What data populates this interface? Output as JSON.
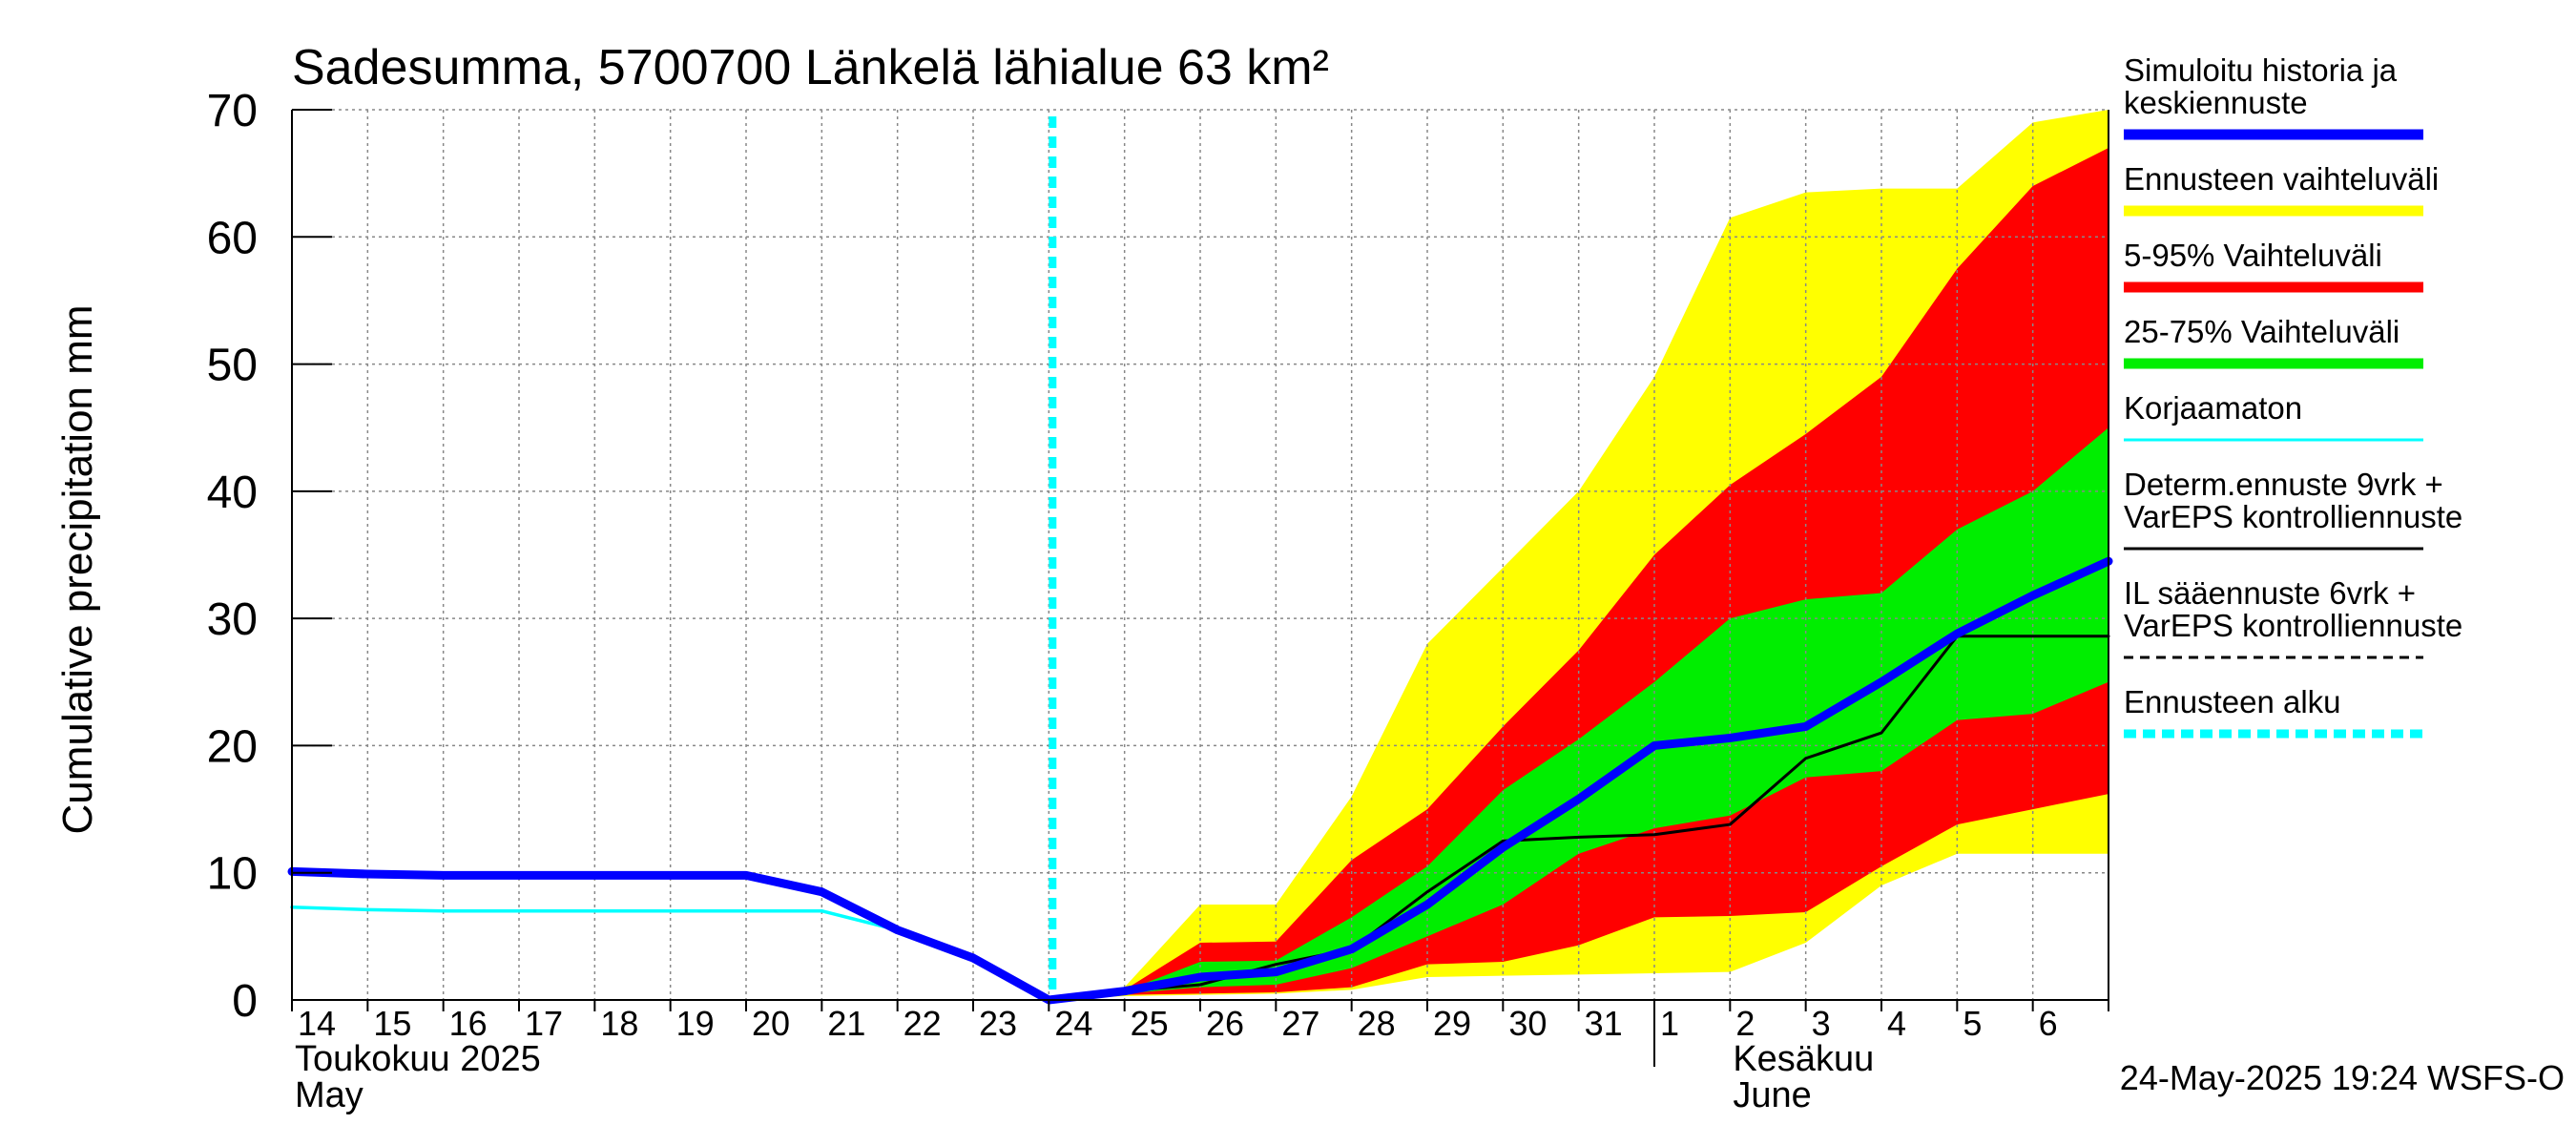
{
  "chart_data": {
    "type": "area",
    "title": "Sadesumma, 5700700 Länkelä lähialue 63 km²",
    "ylabel": "Cumulative precipitation   mm",
    "ylim": [
      0,
      70
    ],
    "yticks": [
      0,
      10,
      20,
      30,
      40,
      50,
      60,
      70
    ],
    "grid": true,
    "legend_position": "right",
    "x_tick_labels": [
      "14",
      "15",
      "16",
      "17",
      "18",
      "19",
      "20",
      "21",
      "22",
      "23",
      "24",
      "25",
      "26",
      "27",
      "28",
      "29",
      "30",
      "31",
      "1",
      "2",
      "3",
      "4",
      "5",
      "6"
    ],
    "month_labels": [
      {
        "day": 0,
        "lines": [
          "Toukokuu  2025",
          "May"
        ]
      },
      {
        "day": 19,
        "lines": [
          "Kesäkuu",
          "June"
        ]
      }
    ],
    "month_divider_day": 18,
    "forecast_start_day": 10,
    "timestamp": "24-May-2025 19:24 WSFS-O",
    "colors": {
      "yellow": "#ffff00",
      "red": "#ff0000",
      "green": "#00ee00",
      "blue": "#0000ff",
      "cyan": "#00ffff",
      "black": "#000000",
      "grid": "#888888"
    },
    "bands": [
      {
        "name": "Ennusteen vaihteluväli",
        "color": "#ffff00",
        "upper": [
          [
            10,
            0
          ],
          [
            11,
            1
          ],
          [
            12,
            7.5
          ],
          [
            13,
            7.5
          ],
          [
            14,
            16
          ],
          [
            15,
            28
          ],
          [
            16,
            34
          ],
          [
            17,
            40
          ],
          [
            18,
            49
          ],
          [
            19,
            61.5
          ],
          [
            20,
            63.5
          ],
          [
            21,
            63.8
          ],
          [
            22,
            63.8
          ],
          [
            23,
            69
          ],
          [
            24,
            70
          ]
        ],
        "lower": [
          [
            10,
            0
          ],
          [
            11,
            0.3
          ],
          [
            12,
            0.4
          ],
          [
            13,
            0.5
          ],
          [
            14,
            0.8
          ],
          [
            15,
            1.8
          ],
          [
            16,
            1.9
          ],
          [
            17,
            2.0
          ],
          [
            18,
            2.1
          ],
          [
            19,
            2.2
          ],
          [
            20,
            4.5
          ],
          [
            21,
            9
          ],
          [
            22,
            11.5
          ],
          [
            23,
            11.5
          ],
          [
            24,
            11.5
          ]
        ]
      },
      {
        "name": "5-95% Vaihteluväli",
        "color": "#ff0000",
        "upper": [
          [
            10,
            0
          ],
          [
            11,
            0.8
          ],
          [
            12,
            4.5
          ],
          [
            13,
            4.6
          ],
          [
            14,
            11
          ],
          [
            15,
            15
          ],
          [
            16,
            21.5
          ],
          [
            17,
            27.5
          ],
          [
            18,
            35
          ],
          [
            19,
            40.5
          ],
          [
            20,
            44.5
          ],
          [
            21,
            49
          ],
          [
            22,
            57.5
          ],
          [
            23,
            64
          ],
          [
            24,
            67
          ]
        ],
        "lower": [
          [
            10,
            0
          ],
          [
            11,
            0.4
          ],
          [
            12,
            0.5
          ],
          [
            13,
            0.6
          ],
          [
            14,
            1.0
          ],
          [
            15,
            2.8
          ],
          [
            16,
            3.0
          ],
          [
            17,
            4.3
          ],
          [
            18,
            6.5
          ],
          [
            19,
            6.6
          ],
          [
            20,
            6.9
          ],
          [
            21,
            10.5
          ],
          [
            22,
            13.8
          ],
          [
            23,
            15
          ],
          [
            24,
            16.2
          ]
        ]
      },
      {
        "name": "25-75% Vaihteluväli",
        "color": "#00ee00",
        "upper": [
          [
            10,
            0
          ],
          [
            11,
            0.7
          ],
          [
            12,
            3.0
          ],
          [
            13,
            3.1
          ],
          [
            14,
            6.5
          ],
          [
            15,
            10.5
          ],
          [
            16,
            16.5
          ],
          [
            17,
            20.5
          ],
          [
            18,
            25
          ],
          [
            19,
            30
          ],
          [
            20,
            31.5
          ],
          [
            21,
            32
          ],
          [
            22,
            37
          ],
          [
            23,
            40
          ],
          [
            24,
            45
          ]
        ],
        "lower": [
          [
            10,
            0
          ],
          [
            11,
            0.5
          ],
          [
            12,
            1.0
          ],
          [
            13,
            1.2
          ],
          [
            14,
            2.5
          ],
          [
            15,
            5.0
          ],
          [
            16,
            7.5
          ],
          [
            17,
            11.5
          ],
          [
            18,
            13.5
          ],
          [
            19,
            14.5
          ],
          [
            20,
            17.5
          ],
          [
            21,
            18
          ],
          [
            22,
            22
          ],
          [
            23,
            22.5
          ],
          [
            24,
            25
          ]
        ]
      }
    ],
    "series": [
      {
        "name": "Korjaamaton",
        "color": "#00ffff",
        "style": "solid",
        "points": [
          [
            0,
            7.3
          ],
          [
            1,
            7.1
          ],
          [
            2,
            7.0
          ],
          [
            3,
            7.0
          ],
          [
            4,
            7.0
          ],
          [
            5,
            7.0
          ],
          [
            6,
            7.0
          ],
          [
            7,
            7.0
          ],
          [
            8,
            5.5
          ],
          [
            9,
            3.3
          ],
          [
            10,
            0
          ]
        ]
      },
      {
        "name": "Determ.ennuste 9vrk + VarEPS kontrolliennuste",
        "color": "#000000",
        "style": "solid",
        "points": [
          [
            10,
            0
          ],
          [
            11,
            0.7
          ],
          [
            12,
            1.2
          ],
          [
            13,
            2.8
          ],
          [
            14,
            4.0
          ],
          [
            15,
            8.5
          ],
          [
            16,
            12.5
          ],
          [
            17,
            12.8
          ],
          [
            18,
            13.0
          ],
          [
            19,
            13.8
          ],
          [
            20,
            19
          ],
          [
            21,
            21
          ],
          [
            22,
            28.6
          ],
          [
            23,
            28.6
          ],
          [
            24,
            28.6
          ]
        ]
      },
      {
        "name": "Simuloitu historia ja keskiennuste",
        "color": "#0000ff",
        "style": "solid",
        "points": [
          [
            0,
            10.1
          ],
          [
            1,
            9.9
          ],
          [
            2,
            9.8
          ],
          [
            3,
            9.8
          ],
          [
            4,
            9.8
          ],
          [
            5,
            9.8
          ],
          [
            6,
            9.8
          ],
          [
            7,
            8.5
          ],
          [
            8,
            5.5
          ],
          [
            9,
            3.3
          ],
          [
            10,
            0
          ],
          [
            11,
            0.7
          ],
          [
            12,
            1.8
          ],
          [
            13,
            2.2
          ],
          [
            14,
            4.0
          ],
          [
            15,
            7.5
          ],
          [
            16,
            12.0
          ],
          [
            17,
            15.8
          ],
          [
            18,
            20.0
          ],
          [
            19,
            20.6
          ],
          [
            20,
            21.5
          ],
          [
            21,
            25
          ],
          [
            22,
            28.8
          ],
          [
            23,
            31.8
          ],
          [
            24,
            34.5
          ]
        ]
      }
    ],
    "legend": [
      {
        "lines": [
          "Simuloitu historia ja",
          "keskiennuste"
        ],
        "color": "#0000ff",
        "style": "thick"
      },
      {
        "lines": [
          "Ennusteen vaihteluväli"
        ],
        "color": "#ffff00",
        "style": "thick"
      },
      {
        "lines": [
          "5-95% Vaihteluväli"
        ],
        "color": "#ff0000",
        "style": "thick"
      },
      {
        "lines": [
          "25-75% Vaihteluväli"
        ],
        "color": "#00ee00",
        "style": "thick"
      },
      {
        "lines": [
          "Korjaamaton"
        ],
        "color": "#00ffff",
        "style": "thin"
      },
      {
        "lines": [
          "Determ.ennuste 9vrk  +",
          "VarEPS kontrolliennuste"
        ],
        "color": "#000000",
        "style": "thin"
      },
      {
        "lines": [
          "IL sääennuste 6vrk  +",
          "  VarEPS kontrolliennuste"
        ],
        "color": "#000000",
        "style": "dashed"
      },
      {
        "lines": [
          "Ennusteen alku"
        ],
        "color": "#00ffff",
        "style": "dotted"
      }
    ]
  }
}
